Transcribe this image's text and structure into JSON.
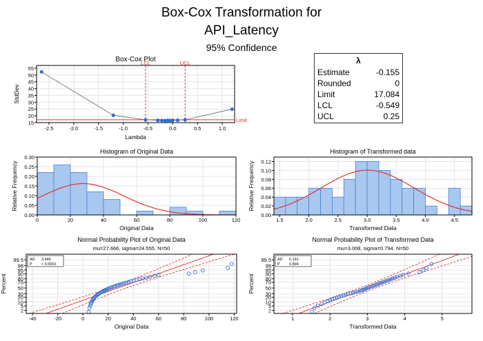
{
  "page": {
    "title_line1": "Box-Cox Transformation for",
    "title_line2": "API_Latency",
    "subtitle": "95% Confidence"
  },
  "lambda_table": {
    "header": "λ",
    "rows": [
      {
        "label": "Estimate",
        "value": "-0.155"
      },
      {
        "label": "Rounded",
        "value": "0"
      },
      {
        "label": "Limit",
        "value": "17.084"
      },
      {
        "label": "LCL",
        "value": "-0.549"
      },
      {
        "label": "UCL",
        "value": "0.25"
      }
    ]
  },
  "colors": {
    "marker": "#2e6fd0",
    "bar_fill": "#a9c8f0",
    "bar_stroke": "#4a7fd0",
    "fit_curve": "#e03030",
    "ref_line": "#e03030",
    "ci_line": "#e03030"
  },
  "chart_data": [
    {
      "id": "boxcox",
      "type": "line",
      "title": "Box-Cox Plot",
      "xlabel": "Lambda",
      "ylabel": "StdDev",
      "xlim": [
        -2.75,
        1.25
      ],
      "ylim": [
        15,
        57
      ],
      "xticks": [
        -2.5,
        -2.0,
        -1.5,
        -1.0,
        -0.5,
        0.0,
        0.5,
        1.0
      ],
      "xtick_labels": [
        "-2.5",
        "-2.0",
        "-1.5",
        "-1.0",
        "-0.5",
        "0.0",
        "0.5",
        "1.0"
      ],
      "yticks": [
        15,
        20,
        25,
        30,
        35,
        40,
        45,
        50,
        55
      ],
      "x": [
        -2.65,
        -1.2,
        -0.549,
        -0.3,
        -0.22,
        -0.155,
        -0.1,
        -0.05,
        0.0,
        0.1,
        0.25,
        1.2
      ],
      "y": [
        52.3,
        20.4,
        17.1,
        16.7,
        16.6,
        16.5,
        16.6,
        16.6,
        16.7,
        16.8,
        17.1,
        24.9
      ],
      "limit": 17.084,
      "limit_label": "Limit",
      "lcl": -0.549,
      "lcl_label": "LCL",
      "ucl": 0.25,
      "ucl_label": "UCL",
      "grid": true
    },
    {
      "id": "hist_orig",
      "type": "bar",
      "title": "Histogram of Original Data",
      "xlabel": "Original Data",
      "ylabel": "Relative Frequency",
      "xlim": [
        0,
        120
      ],
      "ylim": [
        0,
        0.3
      ],
      "xticks": [
        0,
        20,
        40,
        60,
        80,
        100,
        120
      ],
      "yticks": [
        0.0,
        0.05,
        0.1,
        0.15,
        0.2,
        0.25,
        0.3
      ],
      "ytick_labels": [
        "0.00",
        "0.05",
        "0.10",
        "0.15",
        "0.20",
        "0.25",
        "0.30"
      ],
      "bin_edges": [
        0,
        10,
        20,
        30,
        40,
        50,
        60,
        70,
        80,
        90,
        100,
        110,
        120
      ],
      "values": [
        0.22,
        0.26,
        0.22,
        0.12,
        0.08,
        0,
        0.02,
        0,
        0.04,
        0.02,
        0,
        0.02
      ],
      "fit": {
        "mu": 27.666,
        "sigma": 24.555
      },
      "grid": true
    },
    {
      "id": "hist_trans",
      "type": "bar",
      "title": "Histogram of Transformed data",
      "xlabel": "Transformed Data",
      "ylabel": "Relative Frequency",
      "xlim": [
        1.4,
        4.8
      ],
      "ylim": [
        0,
        0.13
      ],
      "xticks": [
        1.5,
        2.0,
        2.5,
        3.0,
        3.5,
        4.0,
        4.5
      ],
      "xtick_labels": [
        "1.5",
        "2.0",
        "2.5",
        "3.0",
        "3.5",
        "4.0",
        "4.5"
      ],
      "yticks": [
        0.0,
        0.02,
        0.04,
        0.06,
        0.08,
        0.1,
        0.12
      ],
      "ytick_labels": [
        "0.00",
        "0.02",
        "0.04",
        "0.06",
        "0.08",
        "0.10",
        "0.12"
      ],
      "bin_edges": [
        1.4,
        1.6,
        1.8,
        2.0,
        2.2,
        2.4,
        2.6,
        2.8,
        3.0,
        3.2,
        3.4,
        3.6,
        3.8,
        4.0,
        4.2,
        4.4,
        4.6,
        4.8
      ],
      "values": [
        0.04,
        0.04,
        0.04,
        0.06,
        0.06,
        0.04,
        0.08,
        0.12,
        0.12,
        0.1,
        0.08,
        0.06,
        0.06,
        0.02,
        0,
        0.06,
        0.02
      ],
      "fit": {
        "mu": 3.008,
        "sigma": 0.794
      },
      "grid": true
    },
    {
      "id": "prob_orig",
      "type": "scatter",
      "title": "Normal Probability Plot of Original Data",
      "subtitle": "mu=27.666, sigma=24.555, N=50",
      "xlabel": "Original Data",
      "ylabel": "Percent",
      "xlim": [
        -45,
        122
      ],
      "xticks": [
        -40,
        -20,
        0,
        20,
        40,
        60,
        80,
        100,
        120
      ],
      "ytick_percents": [
        2,
        5,
        10,
        20,
        30,
        50,
        70,
        80,
        90,
        95,
        98,
        99.5
      ],
      "ytick_labels": [
        "2",
        "5",
        "10",
        "20",
        "30",
        "50",
        "70",
        "80",
        "90",
        "95",
        "98",
        "99.5"
      ],
      "yrange_percent": [
        1,
        99.9
      ],
      "x": [
        4.5,
        5.2,
        5.8,
        6.3,
        6.8,
        7.2,
        7.7,
        8.1,
        8.6,
        9.1,
        9.7,
        10.3,
        10.9,
        11.6,
        12.3,
        13.0,
        13.8,
        14.6,
        15.4,
        16.2,
        17.1,
        18.0,
        18.9,
        19.9,
        20.9,
        22.0,
        23.1,
        24.3,
        25.5,
        26.8,
        28.2,
        29.6,
        31.1,
        32.7,
        34.4,
        36.2,
        38.1,
        40.2,
        42.4,
        44.8,
        47.4,
        50.2,
        53.3,
        56.8,
        60.0,
        84.0,
        89.0,
        95.0,
        115.0,
        118.0
      ],
      "stats": {
        "AD": "3.446",
        "P": "< 0.0001"
      },
      "fit": {
        "mu": 27.666,
        "sigma": 24.555
      },
      "grid": true
    },
    {
      "id": "prob_trans",
      "type": "scatter",
      "title": "Normal Probability Plot of Transformed Data",
      "subtitle": "mu=3.008, sigma=0.794, N=50",
      "xlabel": "Transformed Data",
      "ylabel": "Percent",
      "xlim": [
        0.5,
        5.8
      ],
      "xticks": [
        1,
        2,
        3,
        4,
        5
      ],
      "ytick_percents": [
        2,
        5,
        10,
        20,
        30,
        50,
        70,
        80,
        90,
        95,
        98,
        99.5
      ],
      "ytick_labels": [
        "2",
        "5",
        "10",
        "20",
        "30",
        "50",
        "70",
        "80",
        "90",
        "95",
        "98",
        "99.5"
      ],
      "yrange_percent": [
        1,
        99.9
      ],
      "x": [
        1.52,
        1.58,
        1.68,
        1.78,
        1.86,
        1.94,
        2.0,
        2.06,
        2.12,
        2.18,
        2.24,
        2.3,
        2.36,
        2.42,
        2.48,
        2.56,
        2.62,
        2.68,
        2.74,
        2.8,
        2.84,
        2.88,
        2.92,
        2.95,
        2.98,
        3.02,
        3.06,
        3.1,
        3.14,
        3.18,
        3.22,
        3.26,
        3.3,
        3.34,
        3.38,
        3.43,
        3.48,
        3.53,
        3.58,
        3.63,
        3.68,
        3.74,
        3.8,
        3.88,
        3.96,
        4.1,
        4.4,
        4.5,
        4.58,
        4.72
      ],
      "stats": {
        "AD": "0.191",
        "P": "0.894"
      },
      "fit": {
        "mu": 3.008,
        "sigma": 0.794
      },
      "grid": true
    }
  ]
}
